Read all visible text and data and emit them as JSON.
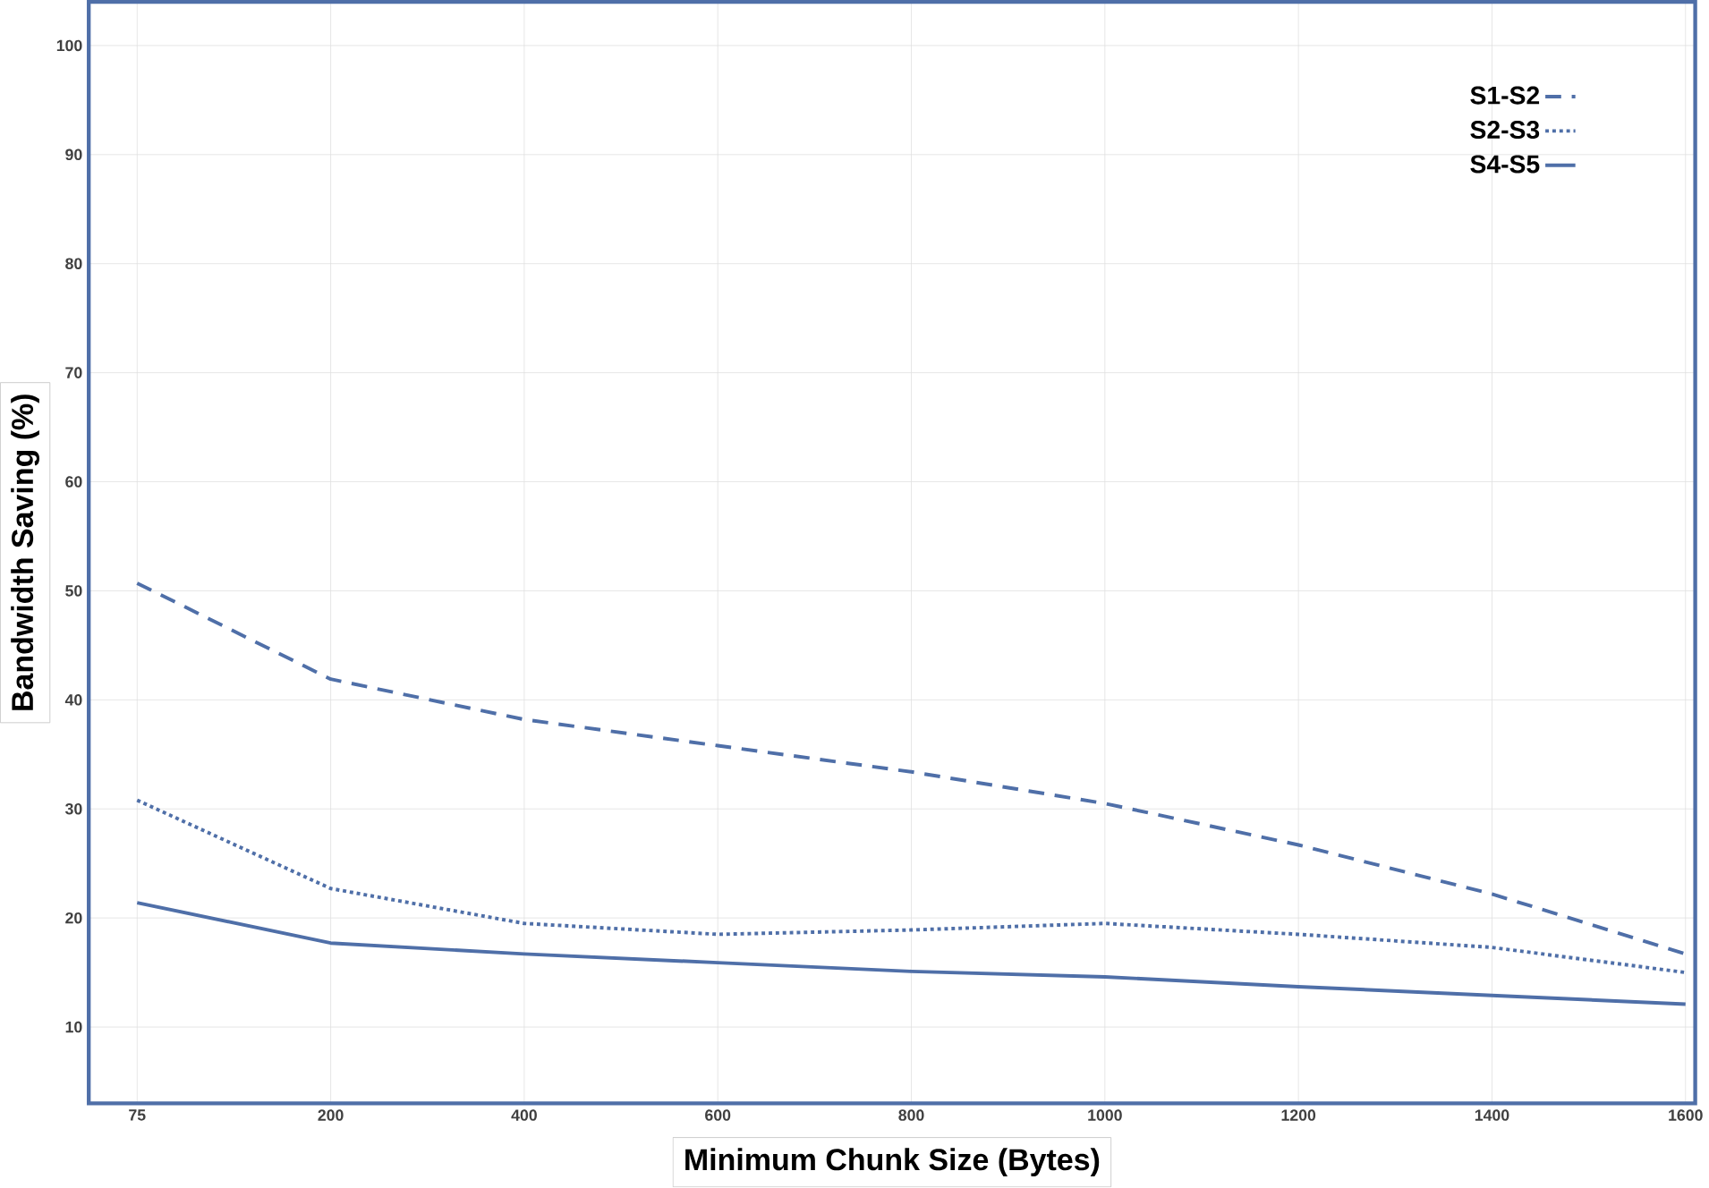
{
  "chart_data": {
    "type": "line",
    "xlabel": "Minimum Chunk Size (Bytes)",
    "ylabel": "Bandwidth Saving (%)",
    "categories": [
      "75",
      "200",
      "400",
      "600",
      "800",
      "1000",
      "1200",
      "1400",
      "1600"
    ],
    "ylim": [
      3,
      104
    ],
    "yticks": [
      10,
      20,
      30,
      40,
      50,
      60,
      70,
      80,
      90,
      100
    ],
    "grid": true,
    "legend": "top right",
    "marker": "none",
    "series": [
      {
        "name": "S1-S2",
        "color": "#4f6fa8",
        "line_style": "dashed",
        "values": [
          50.7,
          41.9,
          38.2,
          35.8,
          33.4,
          30.5,
          26.7,
          22.2,
          16.7
        ]
      },
      {
        "name": "S2-S3",
        "color": "#4f6fa8",
        "line_style": "dotted",
        "values": [
          30.8,
          22.7,
          19.5,
          18.5,
          18.9,
          19.5,
          18.5,
          17.3,
          15.0
        ]
      },
      {
        "name": "S4-S5",
        "color": "#4f6fa8",
        "line_style": "solid",
        "values": [
          21.4,
          17.7,
          16.7,
          15.9,
          15.1,
          14.6,
          13.7,
          12.9,
          12.1
        ]
      }
    ]
  }
}
